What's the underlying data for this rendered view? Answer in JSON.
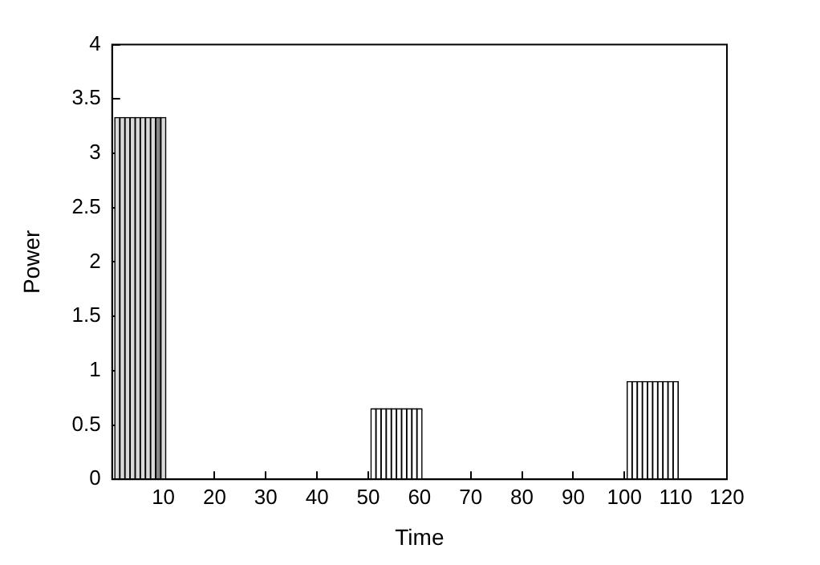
{
  "chart_data": {
    "type": "bar",
    "xlabel": "Time",
    "ylabel": "Power",
    "x": [
      1,
      2,
      3,
      4,
      5,
      6,
      7,
      8,
      9,
      10,
      51,
      52,
      53,
      54,
      55,
      56,
      57,
      58,
      59,
      60,
      101,
      102,
      103,
      104,
      105,
      106,
      107,
      108,
      109,
      110
    ],
    "values": [
      3.33,
      3.33,
      3.33,
      3.33,
      3.33,
      3.33,
      3.33,
      3.33,
      3.33,
      3.33,
      0.65,
      0.65,
      0.65,
      0.65,
      0.65,
      0.65,
      0.65,
      0.65,
      0.65,
      0.65,
      0.9,
      0.9,
      0.9,
      0.9,
      0.9,
      0.9,
      0.9,
      0.9,
      0.9,
      0.9
    ],
    "colors": [
      "#d9d9d9",
      "#d9d9d9",
      "#d9d9d9",
      "#d9d9d9",
      "#d9d9d9",
      "#d9d9d9",
      "#d9d9d9",
      "#d9d9d9",
      "#888888",
      "#d9d9d9",
      "#ffffff",
      "#ffffff",
      "#ffffff",
      "#ffffff",
      "#ffffff",
      "#ffffff",
      "#ffffff",
      "#ffffff",
      "#ffffff",
      "#ffffff",
      "#ffffff",
      "#ffffff",
      "#ffffff",
      "#ffffff",
      "#ffffff",
      "#ffffff",
      "#ffffff",
      "#ffffff",
      "#ffffff",
      "#ffffff"
    ],
    "xlim": [
      0,
      120
    ],
    "xticks": [
      10,
      20,
      30,
      40,
      50,
      60,
      70,
      80,
      90,
      100,
      110,
      120
    ],
    "ylim": [
      0,
      4
    ],
    "yticks": [
      0,
      0.5,
      1,
      1.5,
      2,
      2.5,
      3,
      3.5,
      4
    ],
    "grid": false,
    "legend": false
  }
}
